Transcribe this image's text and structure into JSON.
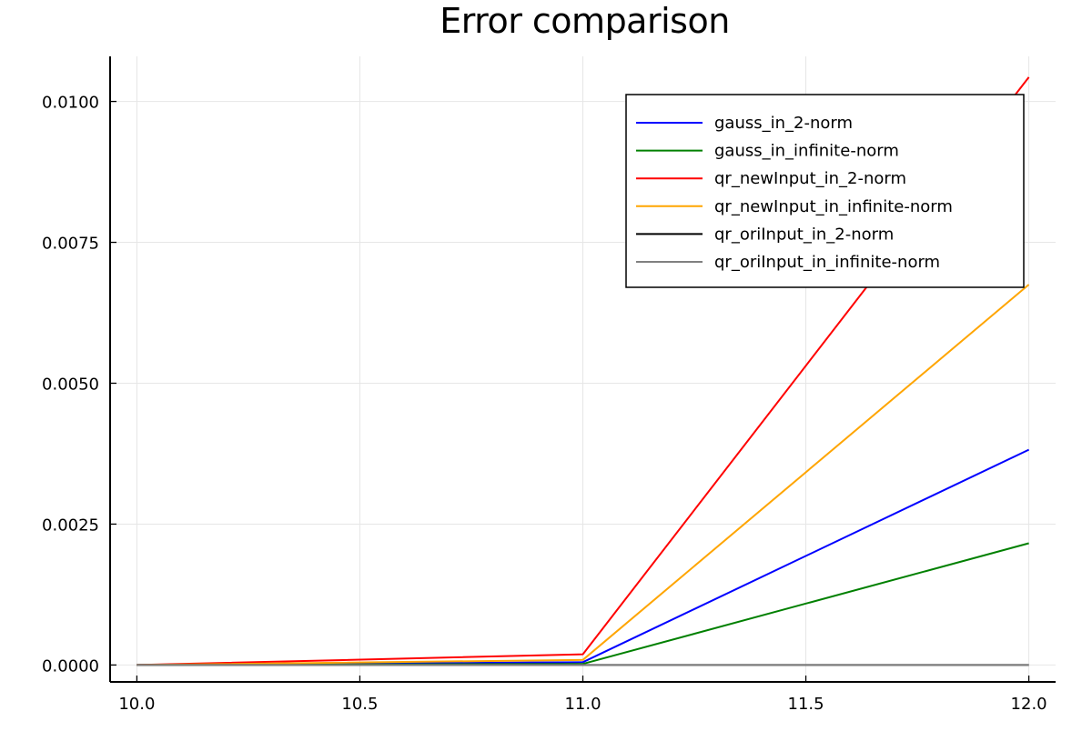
{
  "chart_data": {
    "type": "line",
    "title": "Error comparison",
    "xlabel": "",
    "ylabel": "",
    "xlim": [
      9.94,
      12.06
    ],
    "ylim": [
      -0.0003,
      0.0108
    ],
    "xticks": [
      10.0,
      10.5,
      11.0,
      11.5,
      12.0
    ],
    "xtick_labels": [
      "10.0",
      "10.5",
      "11.0",
      "11.5",
      "12.0"
    ],
    "yticks": [
      0.0,
      0.0025,
      0.005,
      0.0075,
      0.01
    ],
    "ytick_labels": [
      "0.0000",
      "0.0025",
      "0.0050",
      "0.0075",
      "0.0100"
    ],
    "grid": true,
    "legend_position": "top-right",
    "x": [
      10,
      11,
      12
    ],
    "series": [
      {
        "name": "gauss_in_2-norm",
        "color": "#0000ff",
        "values": [
          0.0,
          5e-05,
          0.00382
        ]
      },
      {
        "name": "gauss_in_infinite-norm",
        "color": "#008000",
        "values": [
          0.0,
          2e-05,
          0.00216
        ]
      },
      {
        "name": "qr_newInput_in_2-norm",
        "color": "#ff0000",
        "values": [
          0.0,
          0.00019,
          0.01043
        ]
      },
      {
        "name": "qr_newInput_in_infinite-norm",
        "color": "#ffa500",
        "values": [
          0.0,
          9e-05,
          0.00675
        ]
      },
      {
        "name": "qr_oriInput_in_2-norm",
        "color": "#000000",
        "values": [
          0.0,
          0.0,
          0.0
        ]
      },
      {
        "name": "qr_oriInput_in_infinite-norm",
        "color": "#808080",
        "values": [
          0.0,
          0.0,
          0.0
        ]
      }
    ]
  }
}
